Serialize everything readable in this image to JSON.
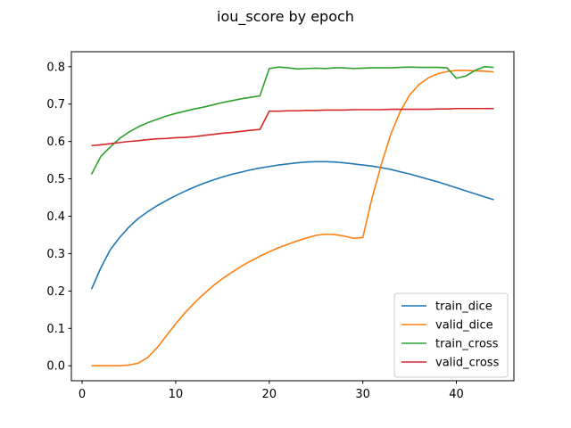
{
  "chart_data": {
    "type": "line",
    "title": "iou_score by epoch",
    "xlabel": "",
    "ylabel": "",
    "xlim": [
      -1.15,
      46.15
    ],
    "ylim": [
      -0.04,
      0.84
    ],
    "xticks": [
      0,
      10,
      20,
      30,
      40
    ],
    "yticks": [
      0.0,
      0.1,
      0.2,
      0.3,
      0.4,
      0.5,
      0.6,
      0.7,
      0.8
    ],
    "ytick_labels": [
      "0.0",
      "0.1",
      "0.2",
      "0.3",
      "0.4",
      "0.5",
      "0.6",
      "0.7",
      "0.8"
    ],
    "grid": false,
    "legend_position": "lower-right",
    "x": [
      1,
      2,
      3,
      4,
      5,
      6,
      7,
      8,
      9,
      10,
      11,
      12,
      13,
      14,
      15,
      16,
      17,
      18,
      19,
      20,
      21,
      22,
      23,
      24,
      25,
      26,
      27,
      28,
      29,
      30,
      31,
      32,
      33,
      34,
      35,
      36,
      37,
      38,
      39,
      40,
      41,
      42,
      43,
      44
    ],
    "series": [
      {
        "name": "train_dice",
        "color": "#1f77b4",
        "values": [
          0.205,
          0.262,
          0.31,
          0.343,
          0.371,
          0.394,
          0.412,
          0.428,
          0.442,
          0.455,
          0.467,
          0.478,
          0.488,
          0.497,
          0.505,
          0.512,
          0.518,
          0.524,
          0.529,
          0.533,
          0.537,
          0.54,
          0.543,
          0.545,
          0.546,
          0.546,
          0.545,
          0.543,
          0.54,
          0.537,
          0.534,
          0.53,
          0.525,
          0.519,
          0.513,
          0.506,
          0.499,
          0.492,
          0.484,
          0.476,
          0.468,
          0.46,
          0.452,
          0.444
        ]
      },
      {
        "name": "valid_dice",
        "color": "#ff7f0e",
        "values": [
          0.0,
          0.0,
          0.0,
          0.0,
          0.002,
          0.007,
          0.022,
          0.048,
          0.08,
          0.112,
          0.142,
          0.168,
          0.192,
          0.214,
          0.233,
          0.25,
          0.266,
          0.28,
          0.293,
          0.305,
          0.316,
          0.325,
          0.334,
          0.342,
          0.349,
          0.352,
          0.351,
          0.347,
          0.341,
          0.343,
          0.45,
          0.54,
          0.62,
          0.68,
          0.724,
          0.752,
          0.77,
          0.781,
          0.787,
          0.79,
          0.79,
          0.789,
          0.788,
          0.786
        ]
      },
      {
        "name": "train_cross",
        "color": "#2ca02c",
        "values": [
          0.512,
          0.56,
          0.585,
          0.608,
          0.625,
          0.639,
          0.65,
          0.659,
          0.668,
          0.675,
          0.681,
          0.687,
          0.692,
          0.698,
          0.704,
          0.709,
          0.714,
          0.718,
          0.722,
          0.795,
          0.799,
          0.797,
          0.794,
          0.795,
          0.796,
          0.795,
          0.797,
          0.797,
          0.795,
          0.796,
          0.797,
          0.797,
          0.797,
          0.798,
          0.799,
          0.798,
          0.798,
          0.798,
          0.797,
          0.769,
          0.775,
          0.79,
          0.8,
          0.798
        ]
      },
      {
        "name": "valid_cross",
        "color": "#d62728",
        "values": [
          0.589,
          0.591,
          0.594,
          0.597,
          0.6,
          0.602,
          0.605,
          0.607,
          0.608,
          0.61,
          0.611,
          0.613,
          0.616,
          0.619,
          0.622,
          0.624,
          0.627,
          0.63,
          0.632,
          0.681,
          0.681,
          0.682,
          0.682,
          0.683,
          0.683,
          0.684,
          0.684,
          0.684,
          0.685,
          0.685,
          0.685,
          0.685,
          0.686,
          0.686,
          0.686,
          0.686,
          0.686,
          0.687,
          0.687,
          0.688,
          0.688,
          0.688,
          0.688,
          0.688
        ]
      }
    ]
  }
}
